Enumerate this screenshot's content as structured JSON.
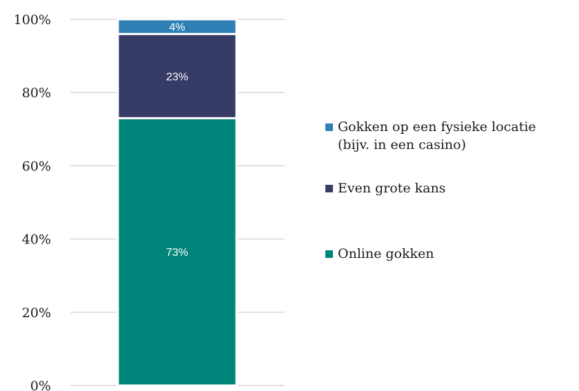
{
  "chart_data": {
    "type": "bar",
    "stacked": true,
    "normalized": true,
    "title": "",
    "xlabel": "",
    "ylabel": "",
    "ylim": [
      0,
      100
    ],
    "y_ticks": [
      "0%",
      "20%",
      "40%",
      "60%",
      "80%",
      "100%"
    ],
    "grid": true,
    "legend_position": "right",
    "categories": [
      ""
    ],
    "series": [
      {
        "name": "Online gokken",
        "values": [
          73
        ],
        "label": "73%",
        "color": "#00857a"
      },
      {
        "name": "Even grote kans",
        "values": [
          23
        ],
        "label": "23%",
        "color": "#363c66"
      },
      {
        "name": "Gokken op een fysieke locatie (bijv. in een casino)",
        "values": [
          4
        ],
        "label": "4%",
        "color": "#2e7fb3"
      }
    ],
    "legend": [
      {
        "lines": [
          "Gokken op een fysieke locatie",
          "(bijv. in een casino)"
        ],
        "color": "#2e7fb3"
      },
      {
        "lines": [
          "Even grote kans"
        ],
        "color": "#363c66"
      },
      {
        "lines": [
          "Online gokken"
        ],
        "color": "#00857a"
      }
    ]
  }
}
